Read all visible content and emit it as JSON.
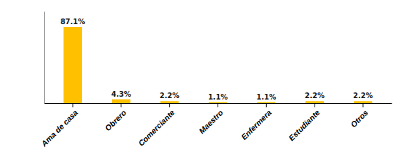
{
  "chart_data": {
    "type": "bar",
    "categories": [
      "Ama de casa",
      "Obrero",
      "Comerciante",
      "Maestro",
      "Enfermera",
      "Estudiante",
      "Otros"
    ],
    "values": [
      87.1,
      4.3,
      2.2,
      1.1,
      1.1,
      2.2,
      2.2
    ],
    "value_labels": [
      "87.1%",
      "4.3%",
      "2.2%",
      "1.1%",
      "1.1%",
      "2.2%",
      "2.2%"
    ],
    "color": "#FFC000",
    "ylim": [
      0,
      105
    ],
    "data_labels": true,
    "tick_labels": "x"
  }
}
